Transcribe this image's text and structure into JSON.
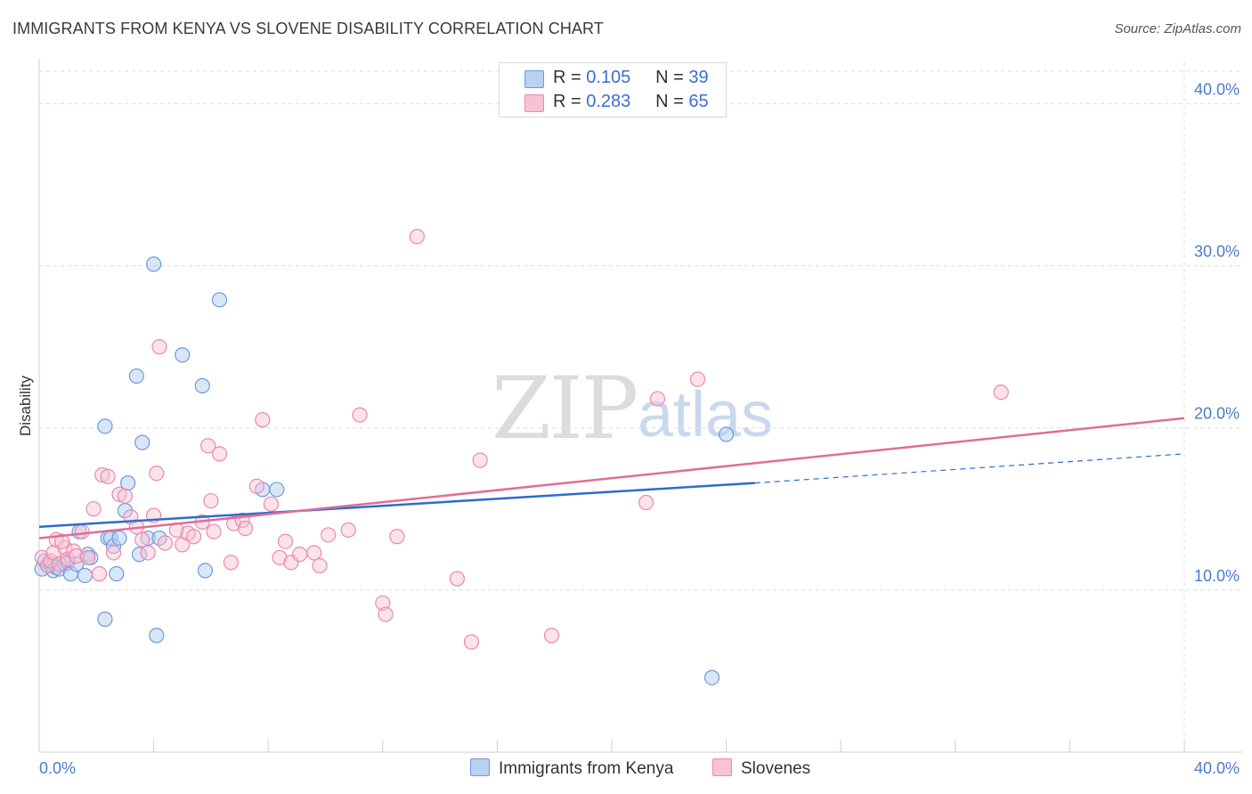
{
  "title": "IMMIGRANTS FROM KENYA VS SLOVENE DISABILITY CORRELATION CHART",
  "source": "Source: ZipAtlas.com",
  "watermark": {
    "zip": "ZIP",
    "atlas": "atlas"
  },
  "colors": {
    "kenya_fill": "#b9d1f3",
    "kenya_stroke": "#6e9bdc",
    "kenya_line": "#2d6bcf",
    "slovene_fill": "#f8c2d3",
    "slovene_stroke": "#e98aa9",
    "slovene_line": "#e06d96",
    "tick_text": "#4a7cc9",
    "grid": "#dddddd"
  },
  "legend": {
    "rows": [
      {
        "r_label": "R =",
        "r_value": "0.105",
        "n_label": "N =",
        "n_value": "39"
      },
      {
        "r_label": "R =",
        "r_value": "0.283",
        "n_label": "N =",
        "n_value": "65"
      }
    ]
  },
  "bottom_legend": {
    "kenya": "Immigrants from Kenya",
    "slovene": "Slovenes"
  },
  "chart_data": {
    "type": "scatter",
    "title": "IMMIGRANTS FROM KENYA VS SLOVENE DISABILITY CORRELATION CHART",
    "xlabel": "",
    "ylabel": "Disability",
    "xlim": [
      0,
      40
    ],
    "ylim": [
      0,
      42
    ],
    "x_tick_labels": [
      "0.0%",
      "40.0%"
    ],
    "y_ticks": [
      10,
      20,
      30,
      40
    ],
    "y_tick_labels": [
      "10.0%",
      "20.0%",
      "30.0%",
      "40.0%"
    ],
    "grid": true,
    "legend_position": "top-center",
    "series": [
      {
        "name": "Immigrants from Kenya",
        "r": 0.105,
        "n": 39,
        "trend": {
          "x0": 0,
          "y0": 13.9,
          "x1": 25,
          "y1": 16.6,
          "dashed_to_x": 40,
          "dashed_to_y": 18.4
        },
        "points": [
          [
            0.1,
            11.3
          ],
          [
            0.2,
            11.8
          ],
          [
            0.3,
            11.5
          ],
          [
            0.4,
            11.6
          ],
          [
            0.5,
            11.2
          ],
          [
            0.6,
            11.4
          ],
          [
            0.7,
            11.3
          ],
          [
            0.9,
            11.6
          ],
          [
            1.0,
            11.7
          ],
          [
            1.1,
            11.0
          ],
          [
            1.3,
            11.6
          ],
          [
            1.4,
            13.6
          ],
          [
            1.6,
            10.9
          ],
          [
            1.7,
            12.2
          ],
          [
            1.8,
            12.0
          ],
          [
            2.3,
            8.2
          ],
          [
            2.3,
            20.1
          ],
          [
            2.4,
            13.2
          ],
          [
            2.5,
            13.2
          ],
          [
            2.6,
            12.7
          ],
          [
            2.7,
            11.0
          ],
          [
            2.8,
            13.2
          ],
          [
            3.0,
            14.9
          ],
          [
            3.1,
            16.6
          ],
          [
            3.4,
            23.2
          ],
          [
            3.5,
            12.2
          ],
          [
            3.6,
            19.1
          ],
          [
            3.8,
            13.2
          ],
          [
            4.0,
            30.1
          ],
          [
            4.1,
            7.2
          ],
          [
            4.2,
            13.2
          ],
          [
            5.0,
            24.5
          ],
          [
            5.7,
            22.6
          ],
          [
            5.8,
            11.2
          ],
          [
            6.3,
            27.9
          ],
          [
            7.8,
            16.2
          ],
          [
            8.3,
            16.2
          ],
          [
            24.0,
            19.6
          ],
          [
            23.5,
            4.6
          ]
        ]
      },
      {
        "name": "Slovenes",
        "r": 0.283,
        "n": 65,
        "trend": {
          "x0": 0,
          "y0": 13.2,
          "x1": 40,
          "y1": 20.6
        },
        "points": [
          [
            0.1,
            12.0
          ],
          [
            0.3,
            11.5
          ],
          [
            0.4,
            11.8
          ],
          [
            0.5,
            12.3
          ],
          [
            0.6,
            13.1
          ],
          [
            0.7,
            11.6
          ],
          [
            0.9,
            12.6
          ],
          [
            1.0,
            11.9
          ],
          [
            1.2,
            12.4
          ],
          [
            1.3,
            12.1
          ],
          [
            1.5,
            13.6
          ],
          [
            1.7,
            12.0
          ],
          [
            1.9,
            15.0
          ],
          [
            2.1,
            11.0
          ],
          [
            2.2,
            17.1
          ],
          [
            2.4,
            17.0
          ],
          [
            2.6,
            12.3
          ],
          [
            2.8,
            15.9
          ],
          [
            3.0,
            15.8
          ],
          [
            3.2,
            14.5
          ],
          [
            3.4,
            13.9
          ],
          [
            3.6,
            13.1
          ],
          [
            3.8,
            12.3
          ],
          [
            4.0,
            14.6
          ],
          [
            4.1,
            17.2
          ],
          [
            4.2,
            25.0
          ],
          [
            4.4,
            12.9
          ],
          [
            4.8,
            13.7
          ],
          [
            5.0,
            12.8
          ],
          [
            5.2,
            13.5
          ],
          [
            5.4,
            13.3
          ],
          [
            5.7,
            14.2
          ],
          [
            5.9,
            18.9
          ],
          [
            6.0,
            15.5
          ],
          [
            6.1,
            13.6
          ],
          [
            6.3,
            18.4
          ],
          [
            6.7,
            11.7
          ],
          [
            6.8,
            14.1
          ],
          [
            7.1,
            14.3
          ],
          [
            7.2,
            13.8
          ],
          [
            7.6,
            16.4
          ],
          [
            7.8,
            20.5
          ],
          [
            8.1,
            15.3
          ],
          [
            8.4,
            12.0
          ],
          [
            8.6,
            13.0
          ],
          [
            8.8,
            11.7
          ],
          [
            9.1,
            12.2
          ],
          [
            9.6,
            12.3
          ],
          [
            9.8,
            11.5
          ],
          [
            10.1,
            13.4
          ],
          [
            10.8,
            13.7
          ],
          [
            11.2,
            20.8
          ],
          [
            12.0,
            9.2
          ],
          [
            12.1,
            8.5
          ],
          [
            12.5,
            13.3
          ],
          [
            13.2,
            31.8
          ],
          [
            14.6,
            10.7
          ],
          [
            15.1,
            6.8
          ],
          [
            15.4,
            18.0
          ],
          [
            17.9,
            7.2
          ],
          [
            21.2,
            15.4
          ],
          [
            21.6,
            21.8
          ],
          [
            23.0,
            23.0
          ],
          [
            33.6,
            22.2
          ],
          [
            0.8,
            13.0
          ]
        ]
      }
    ]
  }
}
